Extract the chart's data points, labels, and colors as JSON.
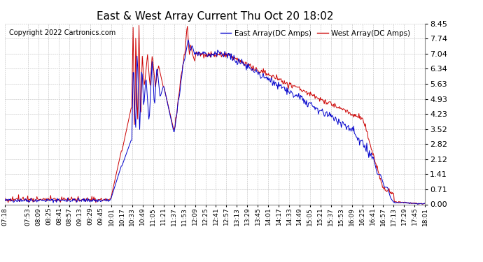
{
  "title": "East & West Array Current Thu Oct 20 18:02",
  "copyright": "Copyright 2022 Cartronics.com",
  "legend_east": "East Array(DC Amps)",
  "legend_west": "West Array(DC Amps)",
  "east_color": "#0000cc",
  "west_color": "#cc0000",
  "background_color": "#ffffff",
  "grid_color": "#bbbbbb",
  "yticks": [
    0.0,
    0.71,
    1.41,
    2.12,
    2.82,
    3.52,
    4.23,
    4.93,
    5.63,
    6.34,
    7.04,
    7.74,
    8.45
  ],
  "ymin": 0.0,
  "ymax": 8.45,
  "xtick_labels": [
    "07:18",
    "07:53",
    "08:09",
    "08:25",
    "08:41",
    "08:57",
    "09:13",
    "09:29",
    "09:45",
    "10:01",
    "10:17",
    "10:33",
    "10:49",
    "11:05",
    "11:21",
    "11:37",
    "11:53",
    "12:09",
    "12:25",
    "12:41",
    "12:57",
    "13:13",
    "13:29",
    "13:45",
    "14:01",
    "14:17",
    "14:33",
    "14:49",
    "15:05",
    "15:21",
    "15:37",
    "15:53",
    "16:09",
    "16:25",
    "16:41",
    "16:57",
    "17:13",
    "17:29",
    "17:45",
    "18:01"
  ],
  "title_fontsize": 11,
  "label_fontsize": 6.5,
  "copyright_fontsize": 7,
  "legend_fontsize": 7.5,
  "ytick_fontsize": 8
}
